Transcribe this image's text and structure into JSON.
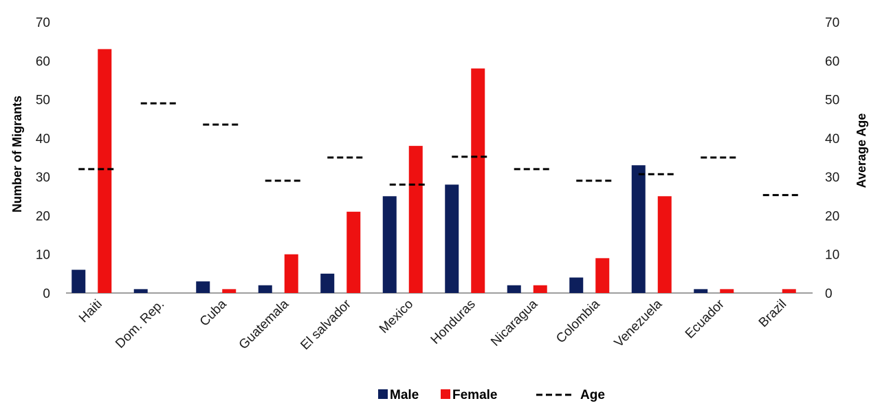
{
  "chart_data": {
    "type": "bar",
    "categories": [
      "Haiti",
      "Dom. Rep.",
      "Cuba",
      "Guatemala",
      "El salvador",
      "Mexico",
      "Honduras",
      "Nicaragua",
      "Colombia",
      "Venezuela",
      "Ecuador",
      "Brazil"
    ],
    "series": [
      {
        "name": "Male",
        "kind": "bar",
        "axis": "left",
        "color": "#0d1f5c",
        "values": [
          6,
          1,
          3,
          2,
          5,
          25,
          28,
          2,
          4,
          33,
          1,
          0
        ]
      },
      {
        "name": "Female",
        "kind": "bar",
        "axis": "left",
        "color": "#ee1111",
        "values": [
          63,
          0,
          1,
          10,
          21,
          38,
          58,
          2,
          9,
          25,
          1,
          1
        ]
      },
      {
        "name": "Age",
        "kind": "dash",
        "axis": "right",
        "color": "#000000",
        "values": [
          32,
          49,
          43.5,
          29,
          35,
          null,
          35.2,
          32,
          29,
          30.7,
          35,
          25.3
        ]
      },
      {
        "name": "",
        "kind": "dash",
        "axis": "right",
        "color": "#000000",
        "values": [
          null,
          null,
          null,
          null,
          null,
          28,
          null,
          null,
          null,
          null,
          null,
          null
        ]
      }
    ],
    "ylabel": "Number of Migrants",
    "y2label": "Average Age",
    "ylim": [
      0,
      70
    ],
    "y2lim": [
      0,
      70
    ],
    "yticks": [
      0,
      10,
      20,
      30,
      40,
      50,
      60,
      70
    ],
    "legend": {
      "placement": "bottom",
      "entries": [
        "Male",
        "Female",
        "Age"
      ]
    },
    "grid": false
  }
}
